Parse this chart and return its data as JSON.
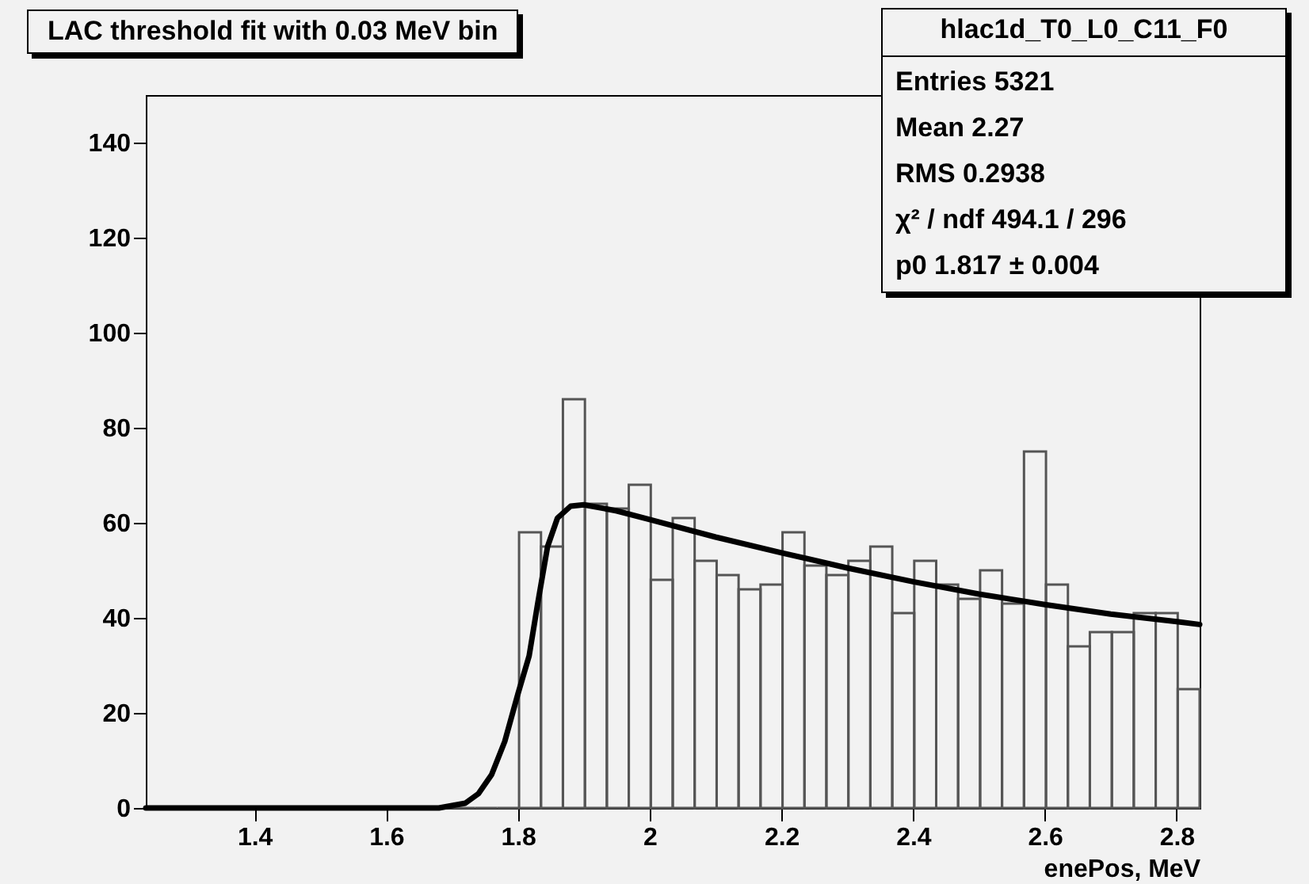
{
  "chart_data": {
    "type": "histogram",
    "title": "LAC threshold fit with 0.03 MeV bin",
    "xlabel": "enePos, MeV",
    "annotations": [
      "hlac1d_T0_L0_C11_F0",
      "Entries 5321",
      "Mean 2.27",
      "RMS 0.2938",
      "χ² / ndf 494.1 / 296",
      "p0 1.817 ± 0.004"
    ],
    "xlim": [
      1.235,
      2.835
    ],
    "xticks": [
      1.4,
      1.6,
      1.8,
      2,
      2.2,
      2.4,
      2.6,
      2.8
    ],
    "ylim": [
      0,
      150
    ],
    "yticks": [
      0,
      20,
      40,
      60,
      80,
      100,
      120,
      140
    ],
    "grid": false,
    "series": [
      {
        "color": "#555555",
        "bins": [
          1.235,
          1.2683,
          1.3017,
          1.335,
          1.3683,
          1.4017,
          1.435,
          1.4683,
          1.5017,
          1.535,
          1.5683,
          1.6017,
          1.635,
          1.6683,
          1.7017,
          1.735,
          1.7683,
          1.8017,
          1.835,
          1.8683,
          1.9017,
          1.935,
          1.9683,
          2.0017,
          2.035,
          2.0683,
          2.1017,
          2.135,
          2.1683,
          2.2017,
          2.235,
          2.2683,
          2.3017,
          2.335,
          2.3683,
          2.4017,
          2.435,
          2.4683,
          2.5017,
          2.535,
          2.5683,
          2.6017,
          2.635,
          2.6683,
          2.7017,
          2.735,
          2.7683,
          2.8017,
          2.835
        ],
        "values": [
          0,
          0,
          0,
          0,
          0,
          0,
          0,
          0,
          0,
          0,
          0,
          0,
          0,
          0,
          0,
          0,
          0,
          58,
          55,
          86,
          64,
          63,
          68,
          48,
          61,
          52,
          49,
          46,
          47,
          58,
          51,
          49,
          52,
          55,
          41,
          52,
          47,
          44,
          50,
          43,
          75,
          47,
          34,
          37,
          37,
          41,
          41,
          25
        ]
      },
      {
        "type": "line",
        "color": "#000000",
        "x": [
          1.235,
          1.4,
          1.6,
          1.68,
          1.7,
          1.72,
          1.74,
          1.76,
          1.78,
          1.8,
          1.817,
          1.83,
          1.845,
          1.86,
          1.88,
          1.9,
          1.95,
          2.0,
          2.1,
          2.2,
          2.3,
          2.4,
          2.5,
          2.6,
          2.7,
          2.8,
          2.835
        ],
        "values": [
          0,
          0,
          0,
          0,
          0.5,
          1,
          3,
          7,
          14,
          24,
          32,
          43,
          55,
          61,
          63.5,
          63.8,
          62.5,
          60.7,
          57,
          53.7,
          50.5,
          47.6,
          45,
          42.8,
          40.8,
          39.2,
          38.6
        ]
      }
    ]
  }
}
